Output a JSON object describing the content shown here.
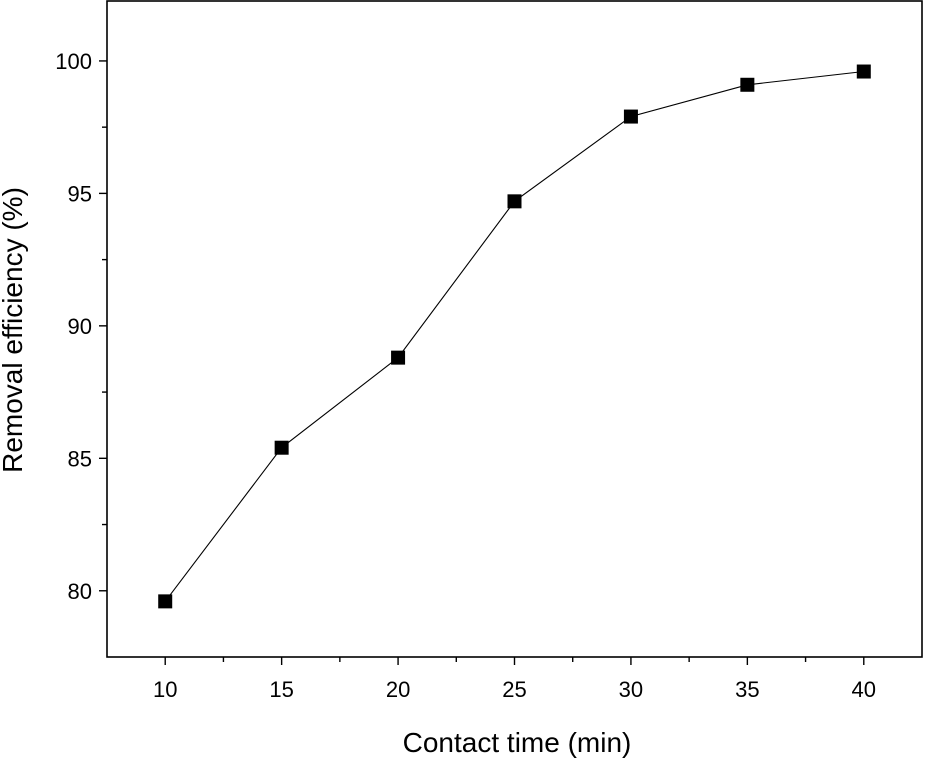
{
  "chart_data": {
    "type": "line",
    "title": "",
    "xlabel": "Contact time (min)",
    "ylabel": "Removal efficiency (%)",
    "xlim": [
      7.5,
      42.5
    ],
    "ylim": [
      77.5,
      102.3
    ],
    "x_ticks": [
      10,
      15,
      20,
      25,
      30,
      35,
      40
    ],
    "x_minor_ticks": [
      12.5,
      17.5,
      22.5,
      27.5,
      32.5,
      37.5
    ],
    "y_ticks": [
      80,
      85,
      90,
      95,
      100
    ],
    "y_minor_ticks": [
      82.5,
      87.5,
      92.5,
      97.5
    ],
    "grid": false,
    "marker": "square",
    "series_color": "#000000",
    "series": [
      {
        "x": [
          10,
          15,
          20,
          25,
          30,
          35,
          40
        ],
        "values": [
          79.6,
          85.4,
          88.8,
          94.7,
          97.9,
          99.1,
          99.6
        ]
      }
    ]
  }
}
